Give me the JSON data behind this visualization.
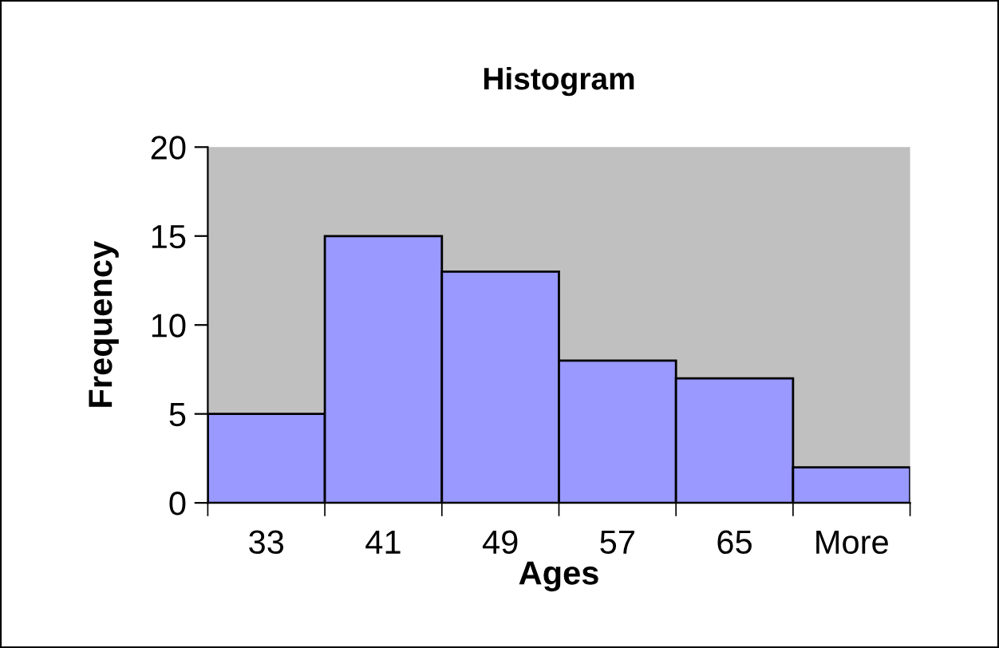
{
  "chart_data": {
    "type": "bar",
    "title": "Histogram",
    "xlabel": "Ages",
    "ylabel": "Frequency",
    "categories": [
      "33",
      "41",
      "49",
      "57",
      "65",
      "More"
    ],
    "values": [
      5,
      15,
      13,
      8,
      7,
      2
    ],
    "color": "#9999ff",
    "ylim": [
      0,
      20
    ],
    "yticks": [
      0,
      5,
      10,
      15,
      20
    ],
    "grid": false,
    "legend": false
  }
}
